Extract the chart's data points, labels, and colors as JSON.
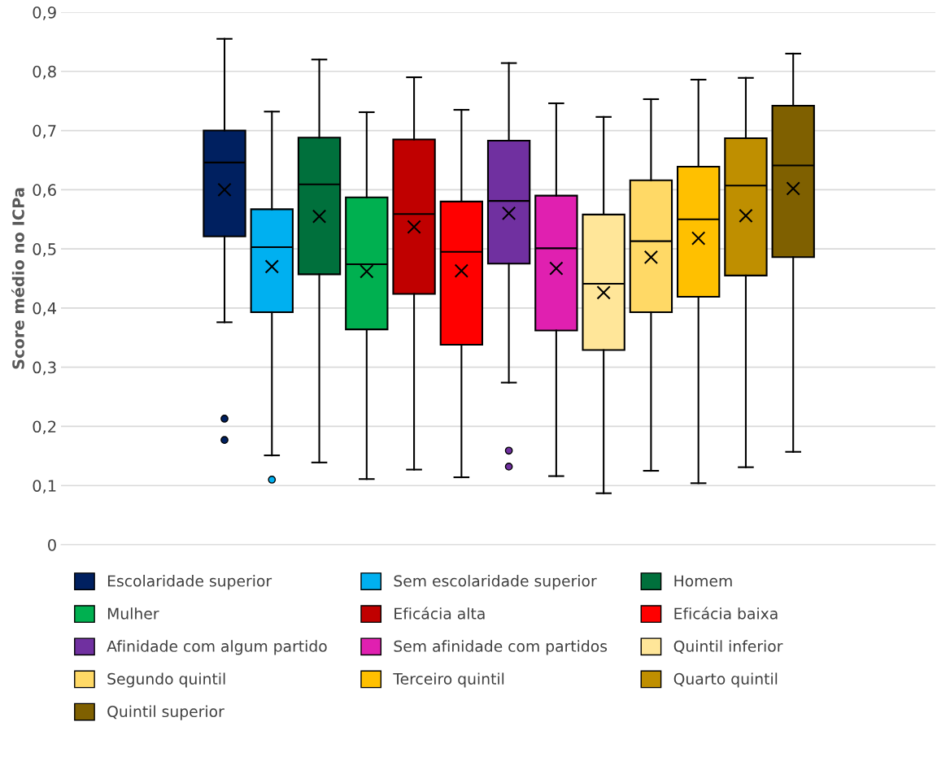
{
  "chart_data": {
    "type": "box",
    "ylabel": "Score médio no ICPa",
    "categories": [
      null
    ],
    "ylim": [
      0,
      0.9
    ],
    "yticks": [
      0,
      {
        "value": 0.1,
        "label": "0,1"
      },
      {
        "value": 0.2,
        "label": "0,2"
      },
      {
        "value": 0.3,
        "label": "0,3"
      },
      {
        "value": 0.4,
        "label": "0,4"
      },
      {
        "value": 0.5,
        "label": "0,5"
      },
      {
        "value": 0.6,
        "label": "0,6"
      },
      {
        "value": 0.7,
        "label": "0,7"
      },
      {
        "value": 0.8,
        "label": "0,8"
      },
      {
        "value": 0.9,
        "label": "0,9"
      }
    ],
    "grid": "y",
    "legend": "bottom",
    "tick_labels": "y",
    "series": [
      {
        "name": "Escolaridade superior",
        "color": "#002060",
        "boxes": [
          {
            "low": 0.376,
            "q1": 0.521,
            "median": 0.646,
            "q3": 0.7,
            "high": 0.855,
            "mean": 0.6,
            "outliers": [
              0.213,
              0.177
            ]
          }
        ]
      },
      {
        "name": "Sem escolaridade superior",
        "color": "#00b0f0",
        "boxes": [
          {
            "low": 0.151,
            "q1": 0.393,
            "median": 0.503,
            "q3": 0.567,
            "high": 0.732,
            "mean": 0.47,
            "outliers": [
              0.11
            ]
          }
        ]
      },
      {
        "name": "Homem",
        "color": "#00703c",
        "boxes": [
          {
            "low": 0.139,
            "q1": 0.457,
            "median": 0.609,
            "q3": 0.688,
            "high": 0.82,
            "mean": 0.555
          }
        ]
      },
      {
        "name": "Mulher",
        "color": "#00b050",
        "boxes": [
          {
            "low": 0.111,
            "q1": 0.364,
            "median": 0.474,
            "q3": 0.587,
            "high": 0.731,
            "mean": 0.462
          }
        ]
      },
      {
        "name": "Eficácia alta",
        "color": "#c00000",
        "boxes": [
          {
            "low": 0.127,
            "q1": 0.424,
            "median": 0.559,
            "q3": 0.685,
            "high": 0.79,
            "mean": 0.537
          }
        ]
      },
      {
        "name": "Eficácia baixa",
        "color": "#ff0000",
        "boxes": [
          {
            "low": 0.114,
            "q1": 0.338,
            "median": 0.495,
            "q3": 0.58,
            "high": 0.735,
            "mean": 0.463
          }
        ]
      },
      {
        "name": "Afinidade com algum partido",
        "color": "#7030a0",
        "boxes": [
          {
            "low": 0.274,
            "q1": 0.475,
            "median": 0.581,
            "q3": 0.683,
            "high": 0.814,
            "mean": 0.56,
            "outliers": [
              0.159,
              0.132
            ]
          }
        ]
      },
      {
        "name": "Sem afinidade com partidos",
        "color": "#e020b0",
        "boxes": [
          {
            "low": 0.116,
            "q1": 0.362,
            "median": 0.501,
            "q3": 0.59,
            "high": 0.746,
            "mean": 0.467
          }
        ]
      },
      {
        "name": "Quintil inferior",
        "color": "#ffe699",
        "boxes": [
          {
            "low": 0.087,
            "q1": 0.329,
            "median": 0.441,
            "q3": 0.558,
            "high": 0.723,
            "mean": 0.426
          }
        ]
      },
      {
        "name": "Segundo quintil",
        "color": "#ffd966",
        "boxes": [
          {
            "low": 0.125,
            "q1": 0.393,
            "median": 0.513,
            "q3": 0.616,
            "high": 0.753,
            "mean": 0.486
          }
        ]
      },
      {
        "name": "Terceiro quintil",
        "color": "#ffc000",
        "boxes": [
          {
            "low": 0.104,
            "q1": 0.419,
            "median": 0.55,
            "q3": 0.639,
            "high": 0.786,
            "mean": 0.518
          }
        ]
      },
      {
        "name": "Quarto quintil",
        "color": "#bf8f00",
        "boxes": [
          {
            "low": 0.131,
            "q1": 0.455,
            "median": 0.607,
            "q3": 0.687,
            "high": 0.789,
            "mean": 0.556
          }
        ]
      },
      {
        "name": "Quintil superior",
        "color": "#7f6000",
        "boxes": [
          {
            "low": 0.157,
            "q1": 0.486,
            "median": 0.641,
            "q3": 0.742,
            "high": 0.83,
            "mean": 0.602
          }
        ]
      }
    ]
  }
}
